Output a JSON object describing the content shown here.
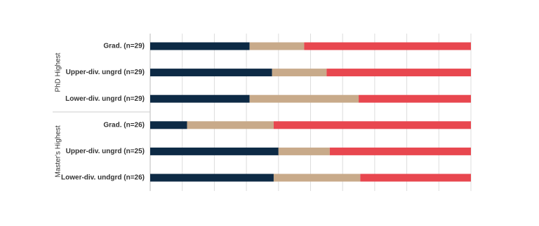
{
  "chart_data": {
    "type": "stacked-barh",
    "groups": [
      {
        "label": "PhD Highest",
        "categories": [
          "Grad. (n=29)",
          "Upper-div. ungrd (n=29)",
          "Lower-div. ungrd (n=29)"
        ]
      },
      {
        "label": "Master's Highest",
        "categories": [
          "Grad. (n=26)",
          "Upper-div. ungrd (n=25)",
          "Lower-div. undgrd (n=26)"
        ]
      }
    ],
    "series": [
      {
        "color": "#0d2a45",
        "values": [
          31,
          38,
          31,
          11.5,
          40,
          38.5
        ]
      },
      {
        "color": "#c8aa8a",
        "values": [
          17,
          17,
          34,
          27,
          16,
          27
        ]
      },
      {
        "color": "#e8474f",
        "values": [
          52,
          45,
          35,
          61.5,
          44,
          34.5
        ]
      }
    ],
    "xlim": [
      0,
      100
    ],
    "xticks": [
      0,
      10,
      20,
      30,
      40,
      50,
      60,
      70,
      80,
      90,
      100
    ],
    "grid": true
  }
}
